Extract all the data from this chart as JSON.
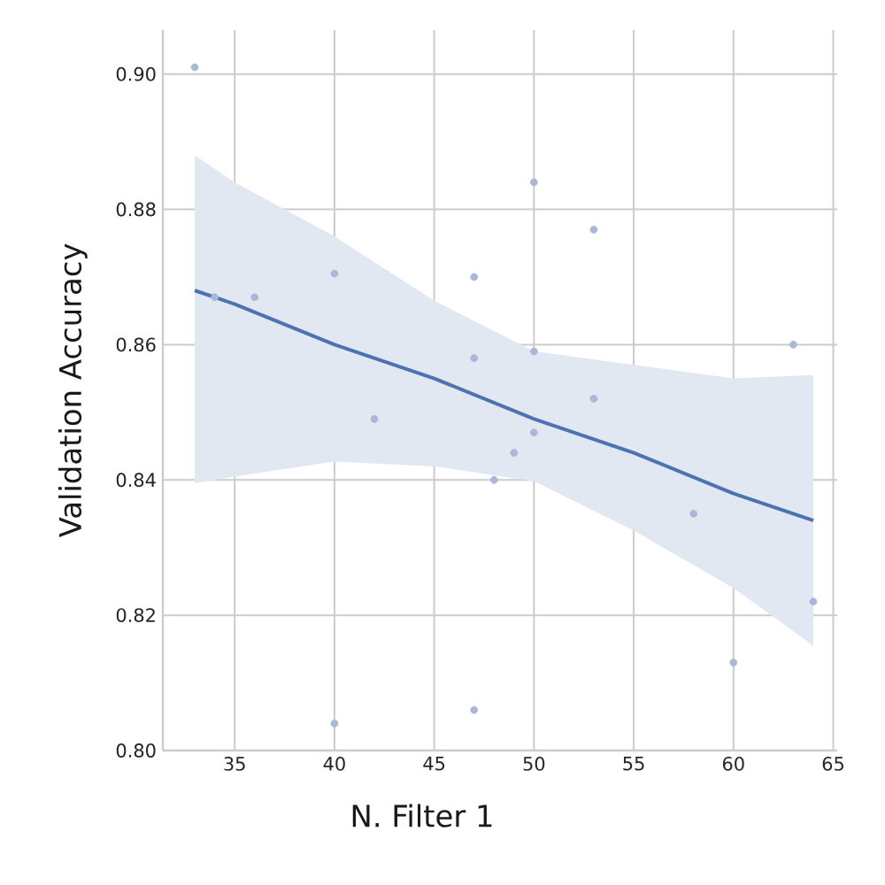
{
  "chart_data": {
    "type": "scatter",
    "xlabel": "N. Filter 1",
    "ylabel": "Validation Accuracy",
    "xlim": [
      31.4,
      65.2
    ],
    "ylim": [
      0.8,
      0.9065
    ],
    "xticks": [
      35,
      40,
      45,
      50,
      55,
      60,
      65
    ],
    "yticks": [
      {
        "value": 0.8,
        "label": "0.80"
      },
      {
        "value": 0.82,
        "label": "0.82"
      },
      {
        "value": 0.84,
        "label": "0.84"
      },
      {
        "value": 0.86,
        "label": "0.86"
      },
      {
        "value": 0.88,
        "label": "0.88"
      },
      {
        "value": 0.9,
        "label": "0.90"
      }
    ],
    "grid": true,
    "series": [
      {
        "marker": "circle",
        "color": "#a9b8d8",
        "x": [
          33,
          34,
          36,
          40,
          42,
          40,
          47,
          47,
          47,
          48,
          49,
          50,
          50,
          50,
          53,
          53,
          58,
          60,
          63,
          64
        ],
        "values": [
          0.901,
          0.867,
          0.867,
          0.8705,
          0.849,
          0.804,
          0.87,
          0.858,
          0.806,
          0.84,
          0.844,
          0.884,
          0.859,
          0.847,
          0.877,
          0.852,
          0.835,
          0.813,
          0.86,
          0.822
        ]
      },
      {
        "type": "line",
        "marker": "none",
        "color": "#4c72b0",
        "x": [
          33,
          35,
          40,
          45,
          50,
          55,
          60,
          64
        ],
        "values": [
          0.868,
          0.866,
          0.86,
          0.855,
          0.849,
          0.844,
          0.838,
          0.834
        ],
        "lower": [
          0.8395,
          0.8405,
          0.8427,
          0.842,
          0.8398,
          0.8325,
          0.824,
          0.8155
        ],
        "upper": [
          0.888,
          0.884,
          0.876,
          0.8665,
          0.859,
          0.857,
          0.855,
          0.8555
        ]
      }
    ]
  }
}
